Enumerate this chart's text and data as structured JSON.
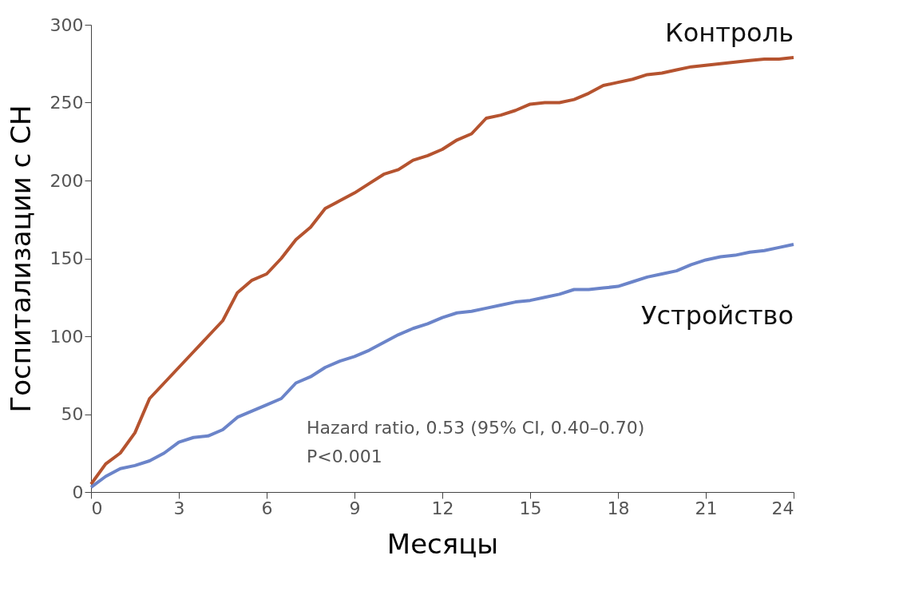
{
  "chart_data": {
    "type": "line",
    "xlabel": "Месяцы",
    "ylabel": "Госпитализации с СН",
    "x": [
      0,
      0.5,
      1,
      1.5,
      2,
      2.5,
      3,
      3.5,
      4,
      4.5,
      5,
      5.5,
      6,
      6.5,
      7,
      7.5,
      8,
      8.5,
      9,
      9.5,
      10,
      10.5,
      11,
      11.5,
      12,
      12.5,
      13,
      13.5,
      14,
      14.5,
      15,
      15.5,
      16,
      16.5,
      17,
      17.5,
      18,
      18.5,
      19,
      19.5,
      20,
      20.5,
      21,
      21.5,
      22,
      22.5,
      23,
      23.5,
      24
    ],
    "series": [
      {
        "name": "Контроль",
        "color": "#b5532f",
        "values": [
          5,
          18,
          25,
          38,
          60,
          70,
          80,
          90,
          100,
          110,
          128,
          136,
          140,
          150,
          162,
          170,
          182,
          187,
          192,
          198,
          204,
          207,
          213,
          216,
          220,
          226,
          230,
          240,
          242,
          245,
          249,
          250,
          250,
          252,
          256,
          261,
          263,
          265,
          268,
          269,
          271,
          273,
          274,
          275,
          276,
          277,
          278,
          278,
          279
        ]
      },
      {
        "name": "Устройство",
        "color": "#6b84c9",
        "values": [
          3,
          10,
          15,
          17,
          20,
          25,
          32,
          35,
          36,
          40,
          48,
          52,
          56,
          60,
          70,
          74,
          80,
          84,
          87,
          91,
          96,
          101,
          105,
          108,
          112,
          115,
          116,
          118,
          120,
          122,
          123,
          125,
          127,
          130,
          130,
          131,
          132,
          135,
          138,
          140,
          142,
          146,
          149,
          151,
          152,
          154,
          155,
          157,
          159
        ]
      }
    ],
    "xlim": [
      0,
      24
    ],
    "xticks": [
      0,
      3,
      6,
      9,
      12,
      15,
      18,
      21,
      24
    ],
    "ylim": [
      0,
      300
    ],
    "yticks": [
      0,
      50,
      100,
      150,
      200,
      250,
      300
    ],
    "grid": false,
    "legend": false,
    "marker": "none",
    "line_style": "solid",
    "annotations": [
      "Hazard ratio, 0.53 (95% CI, 0.40–0.70)",
      "P<0.001"
    ]
  }
}
